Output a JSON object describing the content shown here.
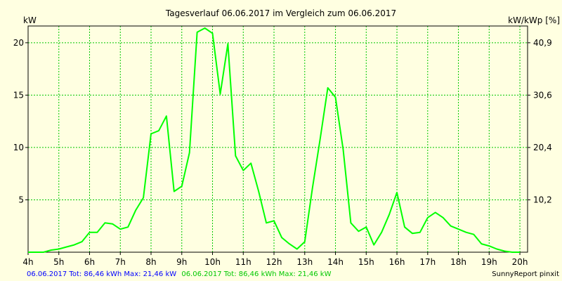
{
  "chart_data": {
    "type": "line",
    "title": "Tagesverlauf 06.06.2017 im Vergleich zum 06.06.2017",
    "ylabel_left": "kW",
    "ylabel_right": "kW/kWp [%]",
    "x_ticks": [
      "4h",
      "5h",
      "6h",
      "7h",
      "8h",
      "9h",
      "10h",
      "11h",
      "12h",
      "13h",
      "14h",
      "15h",
      "16h",
      "17h",
      "18h",
      "19h",
      "20h"
    ],
    "y_ticks_left": [
      "5",
      "10",
      "15",
      "20"
    ],
    "y_ticks_right": [
      "10,2",
      "20,4",
      "30,6",
      "40,9"
    ],
    "xlim": [
      4,
      20.25
    ],
    "ylim": [
      0,
      21.6
    ],
    "grid": true,
    "series": [
      {
        "color": "#00ff00",
        "x": [
          4,
          4.5,
          4.75,
          5,
          5.25,
          5.5,
          5.75,
          6,
          6.25,
          6.5,
          6.75,
          7,
          7.25,
          7.5,
          7.75,
          8,
          8.25,
          8.5,
          8.75,
          9,
          9.25,
          9.5,
          9.75,
          10,
          10.25,
          10.5,
          10.75,
          11,
          11.25,
          11.5,
          11.75,
          12,
          12.25,
          12.5,
          12.75,
          13,
          13.25,
          13.5,
          13.75,
          14,
          14.25,
          14.5,
          14.75,
          15,
          15.25,
          15.5,
          15.75,
          16,
          16.25,
          16.5,
          16.75,
          17,
          17.25,
          17.5,
          17.75,
          18,
          18.25,
          18.5,
          18.75,
          19,
          19.25,
          19.5,
          19.75,
          20
        ],
        "y": [
          0,
          0,
          0.2,
          0.3,
          0.5,
          0.7,
          1.0,
          1.9,
          1.9,
          2.8,
          2.7,
          2.2,
          2.4,
          4.0,
          5.2,
          11.3,
          11.6,
          13.0,
          5.8,
          6.3,
          9.5,
          21.0,
          21.4,
          20.9,
          15.1,
          19.9,
          9.2,
          7.8,
          8.5,
          5.8,
          2.8,
          3.0,
          1.4,
          0.8,
          0.3,
          1.0,
          6.1,
          10.8,
          15.7,
          14.8,
          9.8,
          2.8,
          2.0,
          2.4,
          0.7,
          1.9,
          3.6,
          5.7,
          2.4,
          1.8,
          1.9,
          3.3,
          3.8,
          3.3,
          2.5,
          2.2,
          1.9,
          1.7,
          0.8,
          0.6,
          0.3,
          0.1,
          0,
          0
        ]
      }
    ],
    "footer": {
      "blue": "06.06.2017 Tot: 86,46 kWh Max: 21,46 kW",
      "green": "06.06.2017 Tot: 86,46 kWh Max: 21,46 kW",
      "credit": "SunnyReport pinxit"
    },
    "colors": {
      "background": "#ffffe1",
      "grid": "#00c800",
      "line": "#00ff00",
      "footer_blue": "#0000ff",
      "footer_green": "#00c800"
    }
  }
}
